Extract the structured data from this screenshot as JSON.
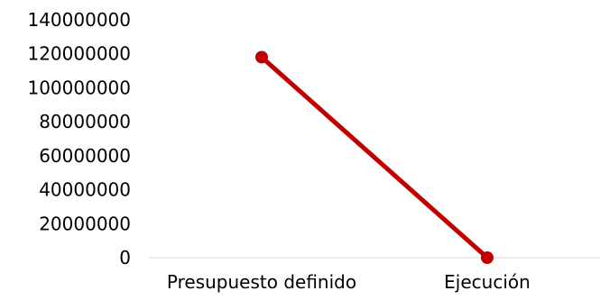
{
  "chart_data": {
    "type": "line",
    "categories": [
      "Presupuesto definido",
      "Ejecución"
    ],
    "series": [
      {
        "values": [
          118000000,
          0
        ]
      }
    ],
    "ylim": [
      0,
      140000000
    ],
    "yticks": [
      0,
      20000000,
      40000000,
      60000000,
      80000000,
      100000000,
      120000000,
      140000000
    ],
    "grid": false,
    "legend": "none",
    "colors": {
      "series": "#c00000",
      "axis": "#d9d9d9",
      "text": "#000000"
    }
  }
}
